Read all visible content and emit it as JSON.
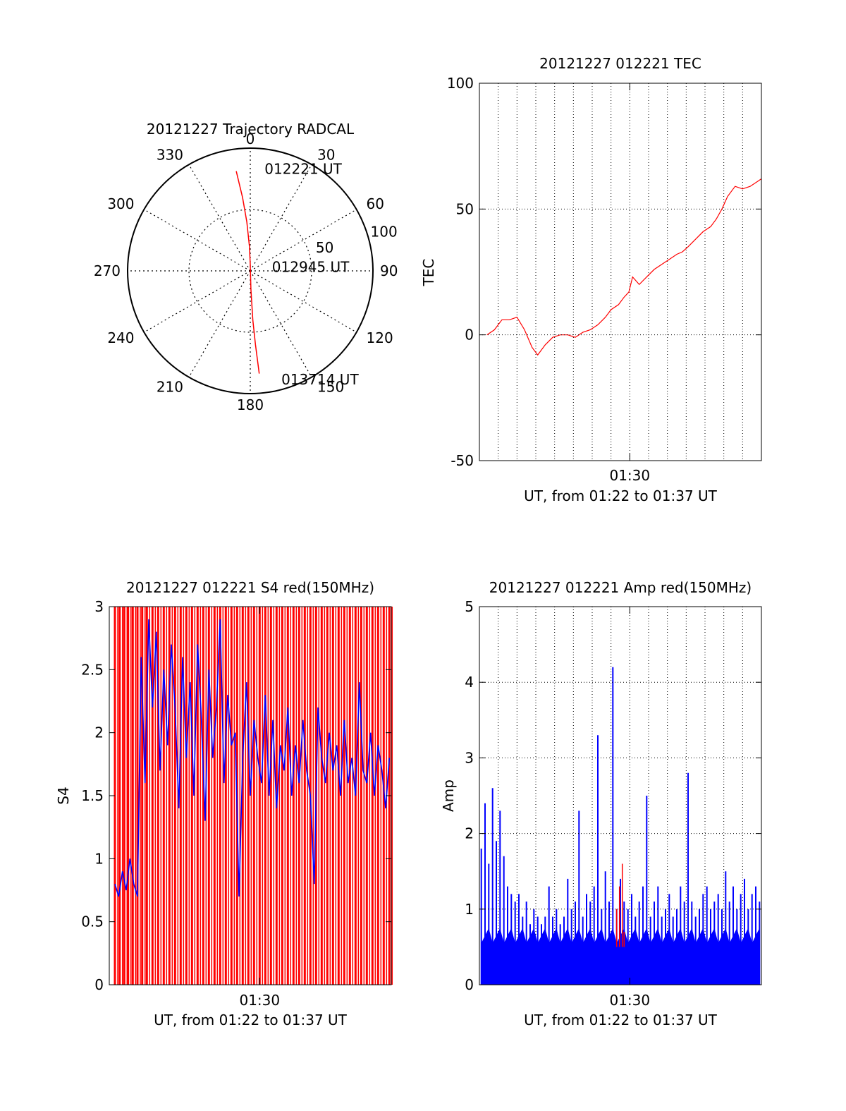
{
  "chart_data": [
    {
      "id": "polar",
      "type": "polar-trajectory",
      "title": "20121227 Trajectory RADCAL",
      "azimuth_labels": [
        "0",
        "30",
        "60",
        "90",
        "120",
        "150",
        "180",
        "210",
        "240",
        "270",
        "300",
        "330"
      ],
      "radial_labels": [
        "50",
        "100"
      ],
      "radial_values": [
        50,
        100
      ],
      "radius_max": 100,
      "trajectory": {
        "color": "#ff0000",
        "points": [
          [
            352,
            82
          ],
          [
            354,
            60
          ],
          [
            356,
            40
          ],
          [
            358,
            20
          ],
          [
            0,
            5
          ],
          [
            178,
            15
          ],
          [
            177,
            40
          ],
          [
            176,
            60
          ],
          [
            175,
            84
          ]
        ]
      },
      "annotations": [
        {
          "text": "012221 UT",
          "az": 8,
          "r": 84
        },
        {
          "text": "012945 UT",
          "az": 80,
          "r": 18
        },
        {
          "text": "013714 UT",
          "az": 164,
          "r": 92
        }
      ]
    },
    {
      "id": "tec",
      "type": "line",
      "title": "20121227 012221 TEC",
      "ylabel": "TEC",
      "xlabel": "UT, from 01:22 to 01:37 UT",
      "xtick_label": "01:30",
      "xlim": [
        0,
        15
      ],
      "xtick_value": 8,
      "grid_x": [
        1,
        2,
        3,
        4,
        5,
        6,
        7,
        8,
        9,
        10,
        11,
        12,
        13,
        14,
        15
      ],
      "ylim": [
        -50,
        100
      ],
      "yticks": [
        -50,
        0,
        50,
        100
      ],
      "ytick_labels": [
        "-50",
        "0",
        "50",
        "100"
      ],
      "series": [
        {
          "name": "TEC",
          "color": "#ff0000",
          "x": [
            0.4,
            0.8,
            1.2,
            1.6,
            2.0,
            2.4,
            2.8,
            3.1,
            3.5,
            3.9,
            4.3,
            4.7,
            5.1,
            5.5,
            5.9,
            6.3,
            6.7,
            7.0,
            7.4,
            7.7,
            7.95,
            8.15,
            8.5,
            8.9,
            9.3,
            9.7,
            10.1,
            10.5,
            10.8,
            11.1,
            11.5,
            11.9,
            12.3,
            12.6,
            12.9,
            13.2,
            13.6,
            14.0,
            14.4,
            14.8,
            15.0
          ],
          "y": [
            0,
            2,
            6,
            6,
            7,
            2,
            -5,
            -8,
            -4,
            -1,
            0,
            0,
            -1,
            1,
            2,
            4,
            7,
            10,
            12,
            15,
            17,
            23,
            20,
            23,
            26,
            28,
            30,
            32,
            33,
            35,
            38,
            41,
            43,
            46,
            50,
            55,
            59,
            58,
            59,
            61,
            62
          ]
        }
      ]
    },
    {
      "id": "s4",
      "type": "line",
      "title": "20121227 012221 S4 red(150MHz)",
      "ylabel": "S4",
      "xlabel": "UT, from 01:22 to 01:37 UT",
      "xtick_label": "01:30",
      "xlim": [
        0,
        15
      ],
      "xtick_value": 8,
      "ylim": [
        0,
        3
      ],
      "yticks": [
        0,
        0.5,
        1,
        1.5,
        2,
        2.5,
        3
      ],
      "ytick_labels": [
        "0",
        "0.5",
        "1",
        "1.5",
        "2",
        "2.5",
        "3"
      ],
      "series": [
        {
          "name": "red",
          "color": "#ff0000",
          "note": "dense vertical spikes spanning 0 to 3 across the whole interval",
          "x": [
            0.3,
            0.55,
            0.8,
            1.0,
            1.25,
            1.5,
            1.75,
            2.0,
            2.3,
            2.6,
            2.9,
            3.2,
            3.5,
            3.8,
            4.1,
            4.4,
            4.7,
            5.0,
            5.3,
            5.6,
            5.9,
            6.2,
            6.5,
            6.8,
            7.1,
            7.4,
            7.7,
            8.0,
            8.3,
            8.6,
            8.9,
            9.2,
            9.5,
            9.8,
            10.1,
            10.4,
            10.7,
            11.0,
            11.3,
            11.6,
            11.9,
            12.2,
            12.5,
            12.8,
            13.1,
            13.4,
            13.7,
            14.0,
            14.3,
            14.6,
            14.9
          ],
          "y": [
            3,
            3,
            3,
            3,
            3,
            3,
            3,
            3,
            3,
            3,
            3,
            3,
            3,
            3,
            3,
            3,
            3,
            3,
            3,
            3,
            3,
            3,
            3,
            3,
            3,
            3,
            3,
            3,
            3,
            3,
            3,
            3,
            3,
            3,
            3,
            3,
            3,
            3,
            3,
            3,
            3,
            3,
            3,
            3,
            3,
            3,
            3,
            3,
            3,
            3,
            3
          ]
        },
        {
          "name": "blue",
          "color": "#0000ff",
          "x": [
            0.3,
            0.5,
            0.7,
            0.9,
            1.1,
            1.3,
            1.5,
            1.7,
            1.9,
            2.1,
            2.3,
            2.5,
            2.7,
            2.9,
            3.1,
            3.3,
            3.5,
            3.7,
            3.9,
            4.1,
            4.3,
            4.5,
            4.7,
            4.9,
            5.1,
            5.3,
            5.5,
            5.7,
            5.9,
            6.1,
            6.3,
            6.5,
            6.7,
            6.9,
            7.1,
            7.3,
            7.5,
            7.7,
            7.9,
            8.1,
            8.3,
            8.5,
            8.7,
            8.9,
            9.1,
            9.3,
            9.5,
            9.7,
            9.9,
            10.1,
            10.3,
            10.5,
            10.7,
            10.9,
            11.1,
            11.3,
            11.5,
            11.7,
            11.9,
            12.1,
            12.3,
            12.5,
            12.7,
            12.9,
            13.1,
            13.3,
            13.5,
            13.7,
            13.9,
            14.1,
            14.3,
            14.5,
            14.7,
            14.9
          ],
          "y": [
            0.8,
            0.7,
            0.9,
            0.75,
            1.0,
            0.8,
            0.7,
            2.6,
            1.6,
            2.9,
            2.2,
            2.8,
            1.7,
            2.5,
            1.9,
            2.7,
            2.2,
            1.4,
            2.6,
            1.8,
            2.4,
            1.5,
            2.7,
            2.1,
            1.3,
            2.5,
            1.8,
            2.2,
            2.9,
            1.6,
            2.3,
            1.9,
            2.0,
            0.7,
            1.8,
            2.4,
            1.5,
            2.1,
            1.8,
            1.6,
            2.3,
            1.5,
            2.1,
            1.4,
            1.9,
            1.7,
            2.2,
            1.5,
            1.9,
            1.6,
            2.1,
            1.7,
            1.5,
            0.8,
            2.2,
            1.8,
            1.6,
            2.0,
            1.7,
            1.9,
            1.5,
            2.1,
            1.6,
            1.8,
            1.5,
            2.4,
            1.7,
            1.6,
            2.0,
            1.5,
            1.9,
            1.7,
            1.4,
            1.8
          ]
        }
      ]
    },
    {
      "id": "amp",
      "type": "line",
      "title": "20121227 012221 Amp red(150MHz)",
      "ylabel": "Amp",
      "xlabel": "UT, from 01:22 to 01:37 UT",
      "xtick_label": "01:30",
      "xlim": [
        0,
        15
      ],
      "xtick_value": 8,
      "grid_x": [
        1,
        2,
        3,
        4,
        5,
        6,
        7,
        8,
        9,
        10,
        11,
        12,
        13,
        14,
        15
      ],
      "ylim": [
        0,
        5
      ],
      "yticks": [
        0,
        1,
        2,
        3,
        4,
        5
      ],
      "ytick_labels": [
        "0",
        "1",
        "2",
        "3",
        "4",
        "5"
      ],
      "series": [
        {
          "name": "blue",
          "color": "#0000ff",
          "x": [
            0.1,
            0.3,
            0.5,
            0.7,
            0.9,
            1.1,
            1.3,
            1.5,
            1.7,
            1.9,
            2.1,
            2.3,
            2.5,
            2.7,
            2.9,
            3.1,
            3.3,
            3.5,
            3.7,
            3.9,
            4.1,
            4.3,
            4.5,
            4.7,
            4.9,
            5.1,
            5.3,
            5.5,
            5.7,
            5.9,
            6.1,
            6.3,
            6.5,
            6.7,
            6.9,
            7.1,
            7.3,
            7.5,
            7.7,
            7.9,
            8.1,
            8.3,
            8.5,
            8.7,
            8.9,
            9.1,
            9.3,
            9.5,
            9.7,
            9.9,
            10.1,
            10.3,
            10.5,
            10.7,
            10.9,
            11.1,
            11.3,
            11.5,
            11.7,
            11.9,
            12.1,
            12.3,
            12.5,
            12.7,
            12.9,
            13.1,
            13.3,
            13.5,
            13.7,
            13.9,
            14.1,
            14.3,
            14.5,
            14.7,
            14.9
          ],
          "y": [
            1.8,
            2.4,
            1.6,
            2.6,
            1.9,
            2.3,
            1.7,
            1.3,
            1.2,
            1.1,
            1.2,
            0.9,
            1.1,
            0.8,
            1.0,
            0.9,
            0.8,
            0.9,
            1.3,
            0.9,
            1.0,
            0.8,
            0.9,
            1.4,
            1.0,
            1.1,
            2.3,
            0.9,
            1.2,
            1.1,
            1.3,
            3.3,
            1.0,
            1.5,
            1.1,
            4.2,
            1.0,
            1.4,
            1.1,
            1.0,
            1.2,
            0.9,
            1.1,
            1.3,
            2.5,
            0.9,
            1.1,
            1.3,
            0.9,
            1.0,
            1.2,
            0.9,
            1.0,
            1.3,
            1.1,
            2.8,
            1.1,
            0.9,
            1.0,
            1.2,
            1.3,
            1.0,
            1.1,
            1.2,
            1.0,
            1.5,
            1.1,
            1.3,
            1.0,
            1.2,
            1.4,
            1.0,
            1.2,
            1.3,
            1.1
          ]
        },
        {
          "name": "red",
          "color": "#ff0000",
          "x": [
            7.3,
            7.45,
            7.6,
            7.7
          ],
          "y": [
            1.0,
            1.3,
            1.6,
            0.7
          ]
        }
      ]
    }
  ]
}
